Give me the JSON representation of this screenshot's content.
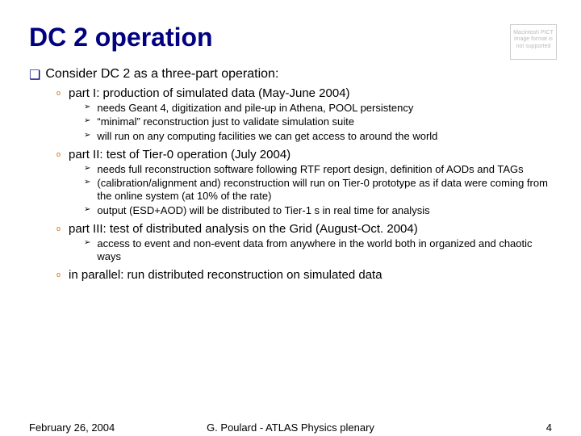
{
  "title": "DC 2 operation",
  "placeholder": "Macintosh PICT\nimage format\nis not supported",
  "intro": "Consider DC 2 as a three-part operation:",
  "parts": [
    {
      "heading": "part I: production of simulated data (May-June 2004)",
      "items": [
        "needs Geant 4, digitization and pile-up in Athena, POOL persistency",
        "“minimal” reconstruction just to validate simulation suite",
        "will run on any computing facilities we can get access to around the world"
      ]
    },
    {
      "heading": "part II: test of Tier-0 operation (July 2004)",
      "items": [
        "needs full reconstruction software following RTF report design, definition of AODs and TAGs",
        "(calibration/alignment and) reconstruction will run on Tier-0 prototype as if data were coming from the online system (at 10% of the rate)",
        "output (ESD+AOD) will be distributed to Tier-1 s in real time for analysis"
      ]
    },
    {
      "heading": "part III: test of distributed analysis on the Grid (August-Oct. 2004)",
      "items": [
        "access to event and non-event data from anywhere in the world both in organized and chaotic ways"
      ]
    },
    {
      "heading": "in parallel: run distributed reconstruction on simulated data",
      "items": []
    }
  ],
  "footer": {
    "date": "February 26, 2004",
    "center": "G. Poulard - ATLAS Physics plenary",
    "page": "4"
  },
  "bullets": {
    "l1": "❑",
    "l2": "o",
    "l3": "➢"
  },
  "colors": {
    "title": "#000080",
    "l1_bullet": "#000080",
    "l2_bullet": "#cc6600",
    "text": "#000000",
    "bg": "#ffffff",
    "placeholder_border": "#cccccc"
  },
  "fontsizes": {
    "title": 32,
    "l1": 16,
    "l2": 15,
    "l3": 13,
    "footer": 13
  }
}
